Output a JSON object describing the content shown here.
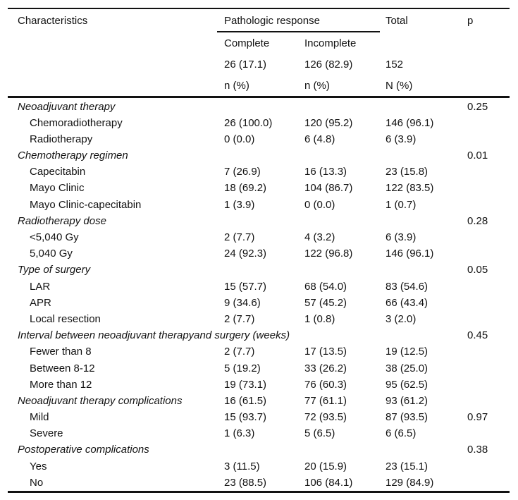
{
  "table": {
    "header": {
      "characteristics": "Characteristics",
      "group": "Pathologic response",
      "total": "Total",
      "p": "p",
      "col_complete": "Complete",
      "col_incomplete": "Incomplete",
      "n_complete": "26 (17.1)",
      "n_incomplete": "126 (82.9)",
      "n_total": "152",
      "unit_complete": "n (%)",
      "unit_incomplete": "n (%)",
      "unit_total": "N (%)"
    },
    "rows": [
      {
        "style": "category",
        "label": "Neoadjuvant therapy",
        "complete": "",
        "incomplete": "",
        "total": "",
        "p": "0.25"
      },
      {
        "style": "sub",
        "label": "Chemoradiotherapy",
        "complete": "26 (100.0)",
        "incomplete": "120 (95.2)",
        "total": "146 (96.1)",
        "p": ""
      },
      {
        "style": "sub",
        "label": "Radiotherapy",
        "complete": "0 (0.0)",
        "incomplete": "6 (4.8)",
        "total": "6 (3.9)",
        "p": ""
      },
      {
        "style": "category",
        "label": "Chemotherapy regimen",
        "complete": "",
        "incomplete": "",
        "total": "",
        "p": "0.01"
      },
      {
        "style": "sub",
        "label": "Capecitabin",
        "complete": "7 (26.9)",
        "incomplete": "16 (13.3)",
        "total": "23 (15.8)",
        "p": ""
      },
      {
        "style": "sub",
        "label": "Mayo Clinic",
        "complete": "18 (69.2)",
        "incomplete": "104 (86.7)",
        "total": "122 (83.5)",
        "p": ""
      },
      {
        "style": "sub",
        "label": "Mayo Clinic-capecitabin",
        "complete": "1 (3.9)",
        "incomplete": "0 (0.0)",
        "total": "1 (0.7)",
        "p": ""
      },
      {
        "style": "category",
        "label": "Radiotherapy dose",
        "complete": "",
        "incomplete": "",
        "total": "",
        "p": "0.28"
      },
      {
        "style": "sub",
        "label": "<5,040 Gy",
        "complete": "2 (7.7)",
        "incomplete": "4 (3.2)",
        "total": "6 (3.9)",
        "p": ""
      },
      {
        "style": "sub",
        "label": "5,040 Gy",
        "complete": "24 (92.3)",
        "incomplete": "122 (96.8)",
        "total": "146 (96.1)",
        "p": ""
      },
      {
        "style": "category",
        "label": "Type of surgery",
        "complete": "",
        "incomplete": "",
        "total": "",
        "p": "0.05"
      },
      {
        "style": "sub",
        "label": "LAR",
        "complete": "15 (57.7)",
        "incomplete": "68 (54.0)",
        "total": "83 (54.6)",
        "p": ""
      },
      {
        "style": "sub",
        "label": "APR",
        "complete": "9 (34.6)",
        "incomplete": "57 (45.2)",
        "total": "66 (43.4)",
        "p": ""
      },
      {
        "style": "sub",
        "label": "Local resection",
        "complete": "2 (7.7)",
        "incomplete": "1 (0.8)",
        "total": "3 (2.0)",
        "p": ""
      },
      {
        "style": "category",
        "label": "Interval between neoadjuvant therapyand surgery (weeks)",
        "complete": "",
        "incomplete": "",
        "total": "",
        "p": "0.45"
      },
      {
        "style": "sub",
        "label": "Fewer than 8",
        "complete": "2 (7.7)",
        "incomplete": "17 (13.5)",
        "total": "19 (12.5)",
        "p": ""
      },
      {
        "style": "sub",
        "label": "Between 8-12",
        "complete": "5 (19.2)",
        "incomplete": "33 (26.2)",
        "total": "38 (25.0)",
        "p": ""
      },
      {
        "style": "sub",
        "label": "More than 12",
        "complete": "19 (73.1)",
        "incomplete": "76 (60.3)",
        "total": "95 (62.5)",
        "p": ""
      },
      {
        "style": "category",
        "label": "Neoadjuvant therapy complications",
        "complete": "16 (61.5)",
        "incomplete": "77 (61.1)",
        "total": "93 (61.2)",
        "p": ""
      },
      {
        "style": "sub",
        "label": "Mild",
        "complete": "15 (93.7)",
        "incomplete": "72 (93.5)",
        "total": "87 (93.5)",
        "p": "0.97"
      },
      {
        "style": "sub",
        "label": "Severe",
        "complete": "1 (6.3)",
        "incomplete": "5 (6.5)",
        "total": "6 (6.5)",
        "p": ""
      },
      {
        "style": "category",
        "label": "Postoperative complications",
        "complete": "",
        "incomplete": "",
        "total": "",
        "p": "0.38"
      },
      {
        "style": "sub",
        "label": "Yes",
        "complete": "3 (11.5)",
        "incomplete": "20 (15.9)",
        "total": "23 (15.1)",
        "p": ""
      },
      {
        "style": "sub",
        "label": "No",
        "complete": "23 (88.5)",
        "incomplete": "106 (84.1)",
        "total": "129 (84.9)",
        "p": ""
      }
    ]
  }
}
